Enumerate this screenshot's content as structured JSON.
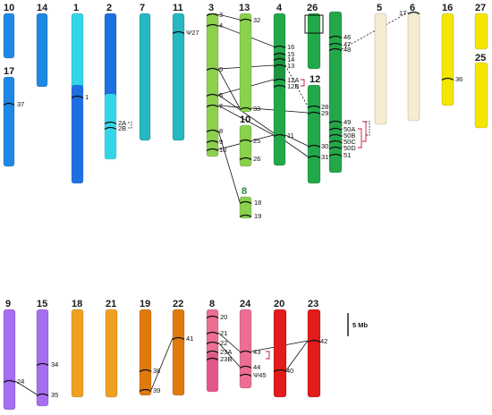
{
  "chromosomes": [
    {
      "id": "c10a",
      "label": "10",
      "color": "#1e88e5"
    },
    {
      "id": "c14",
      "label": "14",
      "color": "#1e88e5"
    },
    {
      "id": "c1",
      "label": "1",
      "color": "#33d6e8"
    },
    {
      "id": "c2",
      "label": "2",
      "color": "#1e6fe0"
    },
    {
      "id": "c7",
      "label": "7",
      "color": "#26b7c0"
    },
    {
      "id": "c11",
      "label": "11",
      "color": "#26b7c0"
    },
    {
      "id": "c3",
      "label": "3",
      "color": "#8bd14e"
    },
    {
      "id": "c13",
      "label": "13",
      "color": "#8bd14e"
    },
    {
      "id": "c4",
      "label": "4",
      "color": "#22a84a"
    },
    {
      "id": "c26",
      "label": "26",
      "color": "#22a84a"
    },
    {
      "id": "c12",
      "label": "12",
      "color": "#22a84a"
    },
    {
      "id": "cR",
      "label": "",
      "color": "#22a84a"
    },
    {
      "id": "c5",
      "label": "5",
      "color": "#f6ecd0"
    },
    {
      "id": "c6",
      "label": "6",
      "color": "#f6ecd0"
    },
    {
      "id": "c16",
      "label": "16",
      "color": "#f5e600"
    },
    {
      "id": "c27",
      "label": "27",
      "color": "#f5e600"
    },
    {
      "id": "c25",
      "label": "25",
      "color": "#f5e600"
    },
    {
      "id": "c17",
      "label": "17",
      "color": "#1e88e5"
    },
    {
      "id": "c10b",
      "label": "10",
      "color": "#8bd14e"
    },
    {
      "id": "c8a",
      "label": "8",
      "color": "#8bd14e"
    },
    {
      "id": "c9",
      "label": "9",
      "color": "#a66ef0"
    },
    {
      "id": "c15",
      "label": "15",
      "color": "#a66ef0"
    },
    {
      "id": "c18",
      "label": "18",
      "color": "#f0a020"
    },
    {
      "id": "c21",
      "label": "21",
      "color": "#f0a020"
    },
    {
      "id": "c19",
      "label": "19",
      "color": "#e07a0c"
    },
    {
      "id": "c22",
      "label": "22",
      "color": "#e07a0c"
    },
    {
      "id": "c8b",
      "label": "8",
      "color": "#ec6f93"
    },
    {
      "id": "c24",
      "label": "24",
      "color": "#ec6f93"
    },
    {
      "id": "c20",
      "label": "20",
      "color": "#e31b1b"
    },
    {
      "id": "c23",
      "label": "23",
      "color": "#e31b1b"
    }
  ],
  "genes": [
    "1",
    "2A",
    "2B",
    "Ψ27",
    "3",
    "4",
    "5",
    "6",
    "7",
    "8",
    "9",
    "10",
    "32",
    "33",
    "25",
    "26",
    "18",
    "19",
    "16",
    "15",
    "14",
    "13",
    "12A",
    "12B",
    "11",
    "28",
    "29",
    "30",
    "31",
    "46",
    "47",
    "48",
    "49",
    "50A",
    "50B",
    "50C",
    "50D",
    "51",
    "17",
    "36",
    "37",
    "24",
    "34",
    "35",
    "38",
    "39",
    "41",
    "20",
    "21",
    "22",
    "23A",
    "23B",
    "43",
    "44",
    "Ψ45",
    "40",
    "42"
  ],
  "scale_bar": {
    "label": "5 Mb"
  }
}
